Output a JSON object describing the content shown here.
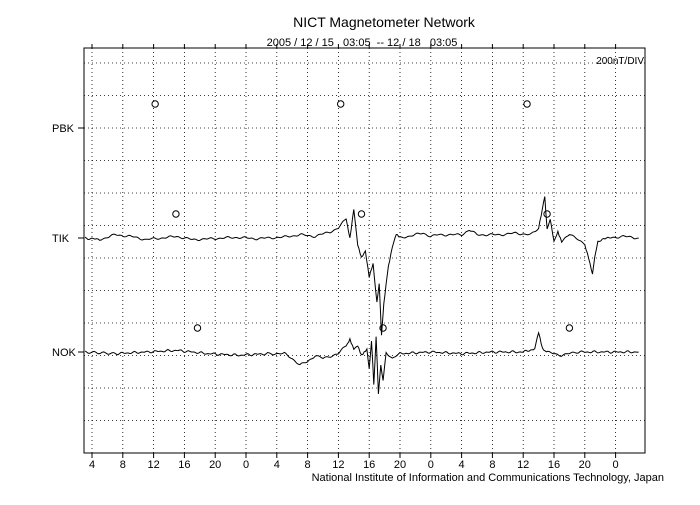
{
  "chart_data": {
    "type": "line",
    "title": "NICT Magnetometer Network",
    "subtitle": "2005 / 12 / 15   03:05  -- 12 / 18   03:05",
    "scale_label": "200nT/DIV",
    "footer": "National Institute of Information and Communications Technology, Japan",
    "x_tick_labels": [
      "4",
      "8",
      "12",
      "16",
      "20",
      "0",
      "4",
      "8",
      "12",
      "16",
      "20",
      "0",
      "4",
      "8",
      "12",
      "16",
      "20",
      "0"
    ],
    "x_range_hours": [
      3.0833,
      75.0833
    ],
    "grid": true,
    "stations": [
      {
        "name": "PBK",
        "has_trace": false,
        "midnight_markers": [
          12.2,
          36.3,
          60.5
        ],
        "points": []
      },
      {
        "name": "TIK",
        "has_trace": true,
        "midnight_markers": [
          14.9,
          39.0,
          63.1
        ],
        "points": [
          [
            3.1,
            0
          ],
          [
            5,
            -0.05
          ],
          [
            7,
            0.1
          ],
          [
            9,
            0.05
          ],
          [
            11,
            -0.05
          ],
          [
            13,
            0
          ],
          [
            15,
            0.05
          ],
          [
            17,
            -0.05
          ],
          [
            19,
            -0.03
          ],
          [
            21,
            0
          ],
          [
            23,
            0.02
          ],
          [
            25,
            -0.02
          ],
          [
            27,
            0
          ],
          [
            29,
            0.03
          ],
          [
            31,
            0.1
          ],
          [
            33,
            0.05
          ],
          [
            35,
            0.2
          ],
          [
            36,
            0.3
          ],
          [
            37,
            0.6
          ],
          [
            37.5,
            0.0
          ],
          [
            38,
            0.9
          ],
          [
            38.5,
            -0.2
          ],
          [
            39,
            -0.6
          ],
          [
            39.5,
            -0.4
          ],
          [
            40,
            -1.2
          ],
          [
            40.5,
            -0.8
          ],
          [
            41,
            -2.0
          ],
          [
            41.3,
            -1.4
          ],
          [
            41.6,
            -3.0
          ],
          [
            41.9,
            -2.0
          ],
          [
            42.2,
            -1.4
          ],
          [
            42.5,
            -0.9
          ],
          [
            43,
            -0.3
          ],
          [
            43.5,
            0.1
          ],
          [
            44,
            0.0
          ],
          [
            45,
            0.05
          ],
          [
            46,
            0.1
          ],
          [
            47,
            0.15
          ],
          [
            48,
            0.05
          ],
          [
            49,
            0.1
          ],
          [
            50,
            0.1
          ],
          [
            52,
            0.1
          ],
          [
            53,
            0.25
          ],
          [
            54,
            0.1
          ],
          [
            55,
            0.1
          ],
          [
            57,
            0.1
          ],
          [
            59,
            0.15
          ],
          [
            61,
            0.1
          ],
          [
            62,
            0.3
          ],
          [
            62.5,
            0.9
          ],
          [
            62.8,
            1.3
          ],
          [
            63.1,
            0.3
          ],
          [
            63.5,
            0.6
          ],
          [
            64,
            -0.1
          ],
          [
            64.5,
            0.2
          ],
          [
            65,
            -0.1
          ],
          [
            66,
            0.1
          ],
          [
            67,
            0.0
          ],
          [
            68,
            -0.2
          ],
          [
            68.5,
            -0.6
          ],
          [
            69,
            -1.1
          ],
          [
            69.3,
            -0.6
          ],
          [
            69.7,
            -0.1
          ],
          [
            71,
            0.0
          ],
          [
            73,
            0.05
          ],
          [
            75,
            0.0
          ]
        ]
      },
      {
        "name": "NOK",
        "has_trace": true,
        "midnight_markers": [
          17.7,
          41.8,
          66.0
        ],
        "points": [
          [
            3.1,
            0
          ],
          [
            7,
            -0.05
          ],
          [
            11,
            0
          ],
          [
            15,
            0.05
          ],
          [
            19,
            -0.05
          ],
          [
            23,
            -0.1
          ],
          [
            27,
            -0.05
          ],
          [
            29,
            -0.05
          ],
          [
            30,
            -0.2
          ],
          [
            31,
            -0.4
          ],
          [
            32,
            -0.3
          ],
          [
            33,
            -0.1
          ],
          [
            34,
            -0.2
          ],
          [
            36,
            -0.05
          ],
          [
            37,
            0.2
          ],
          [
            37.5,
            0.4
          ],
          [
            38,
            0.1
          ],
          [
            38.5,
            0.2
          ],
          [
            39,
            -0.1
          ],
          [
            39.7,
            0.1
          ],
          [
            40,
            -0.5
          ],
          [
            40.3,
            0.3
          ],
          [
            40.6,
            -1.0
          ],
          [
            40.9,
            0.5
          ],
          [
            41.2,
            -1.3
          ],
          [
            41.5,
            -0.4
          ],
          [
            41.8,
            -0.9
          ],
          [
            42.2,
            0.0
          ],
          [
            43,
            -0.2
          ],
          [
            44,
            -0.05
          ],
          [
            48,
            0.0
          ],
          [
            52,
            -0.05
          ],
          [
            56,
            0.0
          ],
          [
            60,
            0.0
          ],
          [
            61.5,
            0.1
          ],
          [
            62,
            0.6
          ],
          [
            62.5,
            0.1
          ],
          [
            63,
            0.0
          ],
          [
            65,
            -0.1
          ],
          [
            67,
            0.0
          ],
          [
            71,
            0.0
          ],
          [
            75,
            0.0
          ]
        ]
      }
    ]
  }
}
